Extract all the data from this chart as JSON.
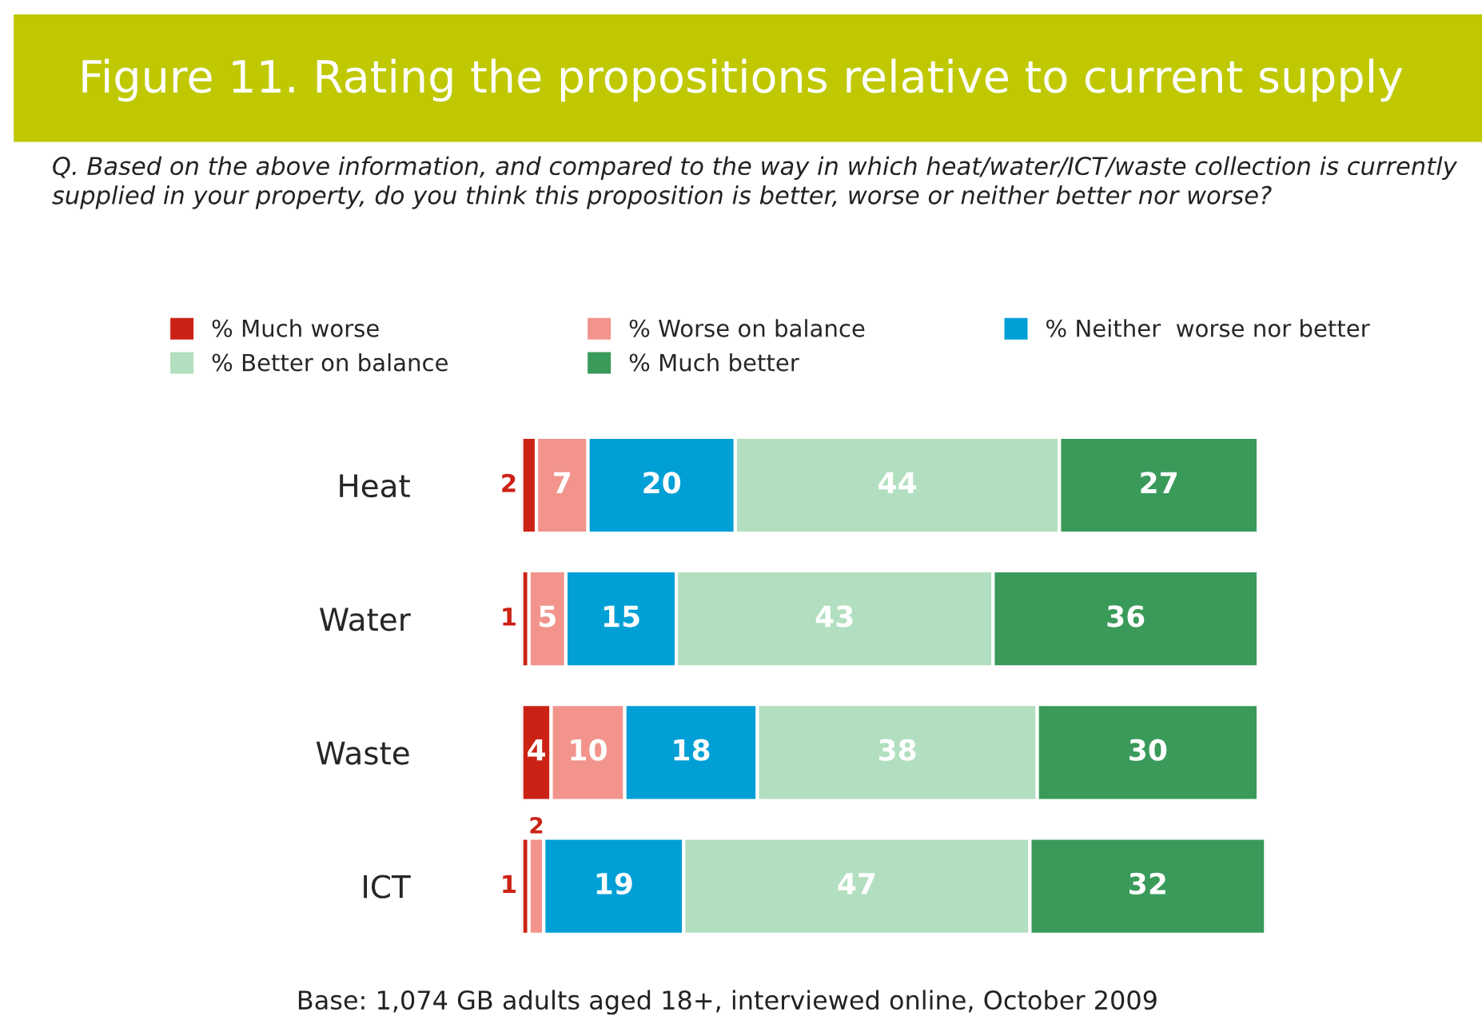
{
  "chart_data": {
    "type": "bar",
    "orientation": "horizontal",
    "stacked": true,
    "data_labels": true,
    "legend": "top",
    "title": "Figure 11. Rating the propositions relative to current supply",
    "subtitle": "Q. Based on the above information, and compared to the way in which heat/water/ICT/waste collection is currently supplied in your property, do you think this proposition is better, worse or neither better nor worse?",
    "annotations": [
      "Base: 1,074 GB adults aged 18+, interviewed online, October 2009"
    ],
    "categories": [
      "Heat",
      "Water",
      "Waste",
      "ICT"
    ],
    "series": [
      {
        "name": "% Much worse",
        "color": "#cc2216",
        "values": [
          2,
          1,
          4,
          1
        ]
      },
      {
        "name": "% Worse on balance",
        "color": "#f2948c",
        "values": [
          7,
          5,
          10,
          2
        ]
      },
      {
        "name": "% Neither  worse nor better",
        "color": "#009fd6",
        "values": [
          20,
          15,
          18,
          19
        ]
      },
      {
        "name": "% Better on balance",
        "color": "#b2dfbf",
        "values": [
          44,
          43,
          38,
          47
        ]
      },
      {
        "name": "% Much better",
        "color": "#3a9a5a",
        "values": [
          27,
          36,
          30,
          32
        ]
      }
    ]
  }
}
